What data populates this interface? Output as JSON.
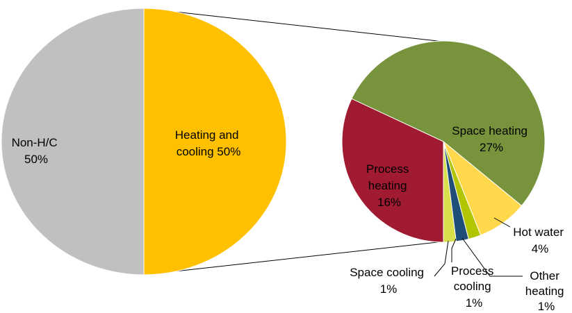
{
  "chart_data": [
    {
      "type": "pie",
      "title": "",
      "slices": [
        {
          "label": "Non-H/C",
          "value_label": "50%",
          "value": 50,
          "color": "#C0C0C0"
        },
        {
          "label": "Heating and cooling",
          "value_label": "50%",
          "value": 50,
          "color": "#FFC000"
        }
      ]
    },
    {
      "type": "pie",
      "title": "",
      "breakdown_of": "Heating and cooling",
      "slices": [
        {
          "label": "Space heating",
          "value_label": "27%",
          "value": 27,
          "color": "#77933C"
        },
        {
          "label": "Hot water",
          "value_label": "4%",
          "value": 4,
          "color": "#FFD84C"
        },
        {
          "label": "Other heating",
          "value_label": "1%",
          "value": 1,
          "color": "#B3C400"
        },
        {
          "label": "Process cooling",
          "value_label": "1%",
          "value": 1,
          "color": "#1F4E79"
        },
        {
          "label": "Space cooling",
          "value_label": "1%",
          "value": 1,
          "color": "#D7E04A"
        },
        {
          "label": "Process heating",
          "value_label": "16%",
          "value": 16,
          "color": "#A01A31"
        }
      ]
    }
  ],
  "labels": {
    "non_hc": [
      "Non-H/C",
      "50%"
    ],
    "hc": [
      "Heating and",
      "cooling 50%"
    ],
    "space_heating": [
      "Space heating",
      "27%"
    ],
    "process_heating": [
      "Process",
      "heating",
      "16%"
    ],
    "hot_water": [
      "Hot water",
      "4%"
    ],
    "other_heating": [
      "Other",
      "heating",
      "1%"
    ],
    "process_cooling": [
      "Process",
      "cooling",
      "1%"
    ],
    "space_cooling": [
      "Space cooling",
      "1%"
    ]
  }
}
